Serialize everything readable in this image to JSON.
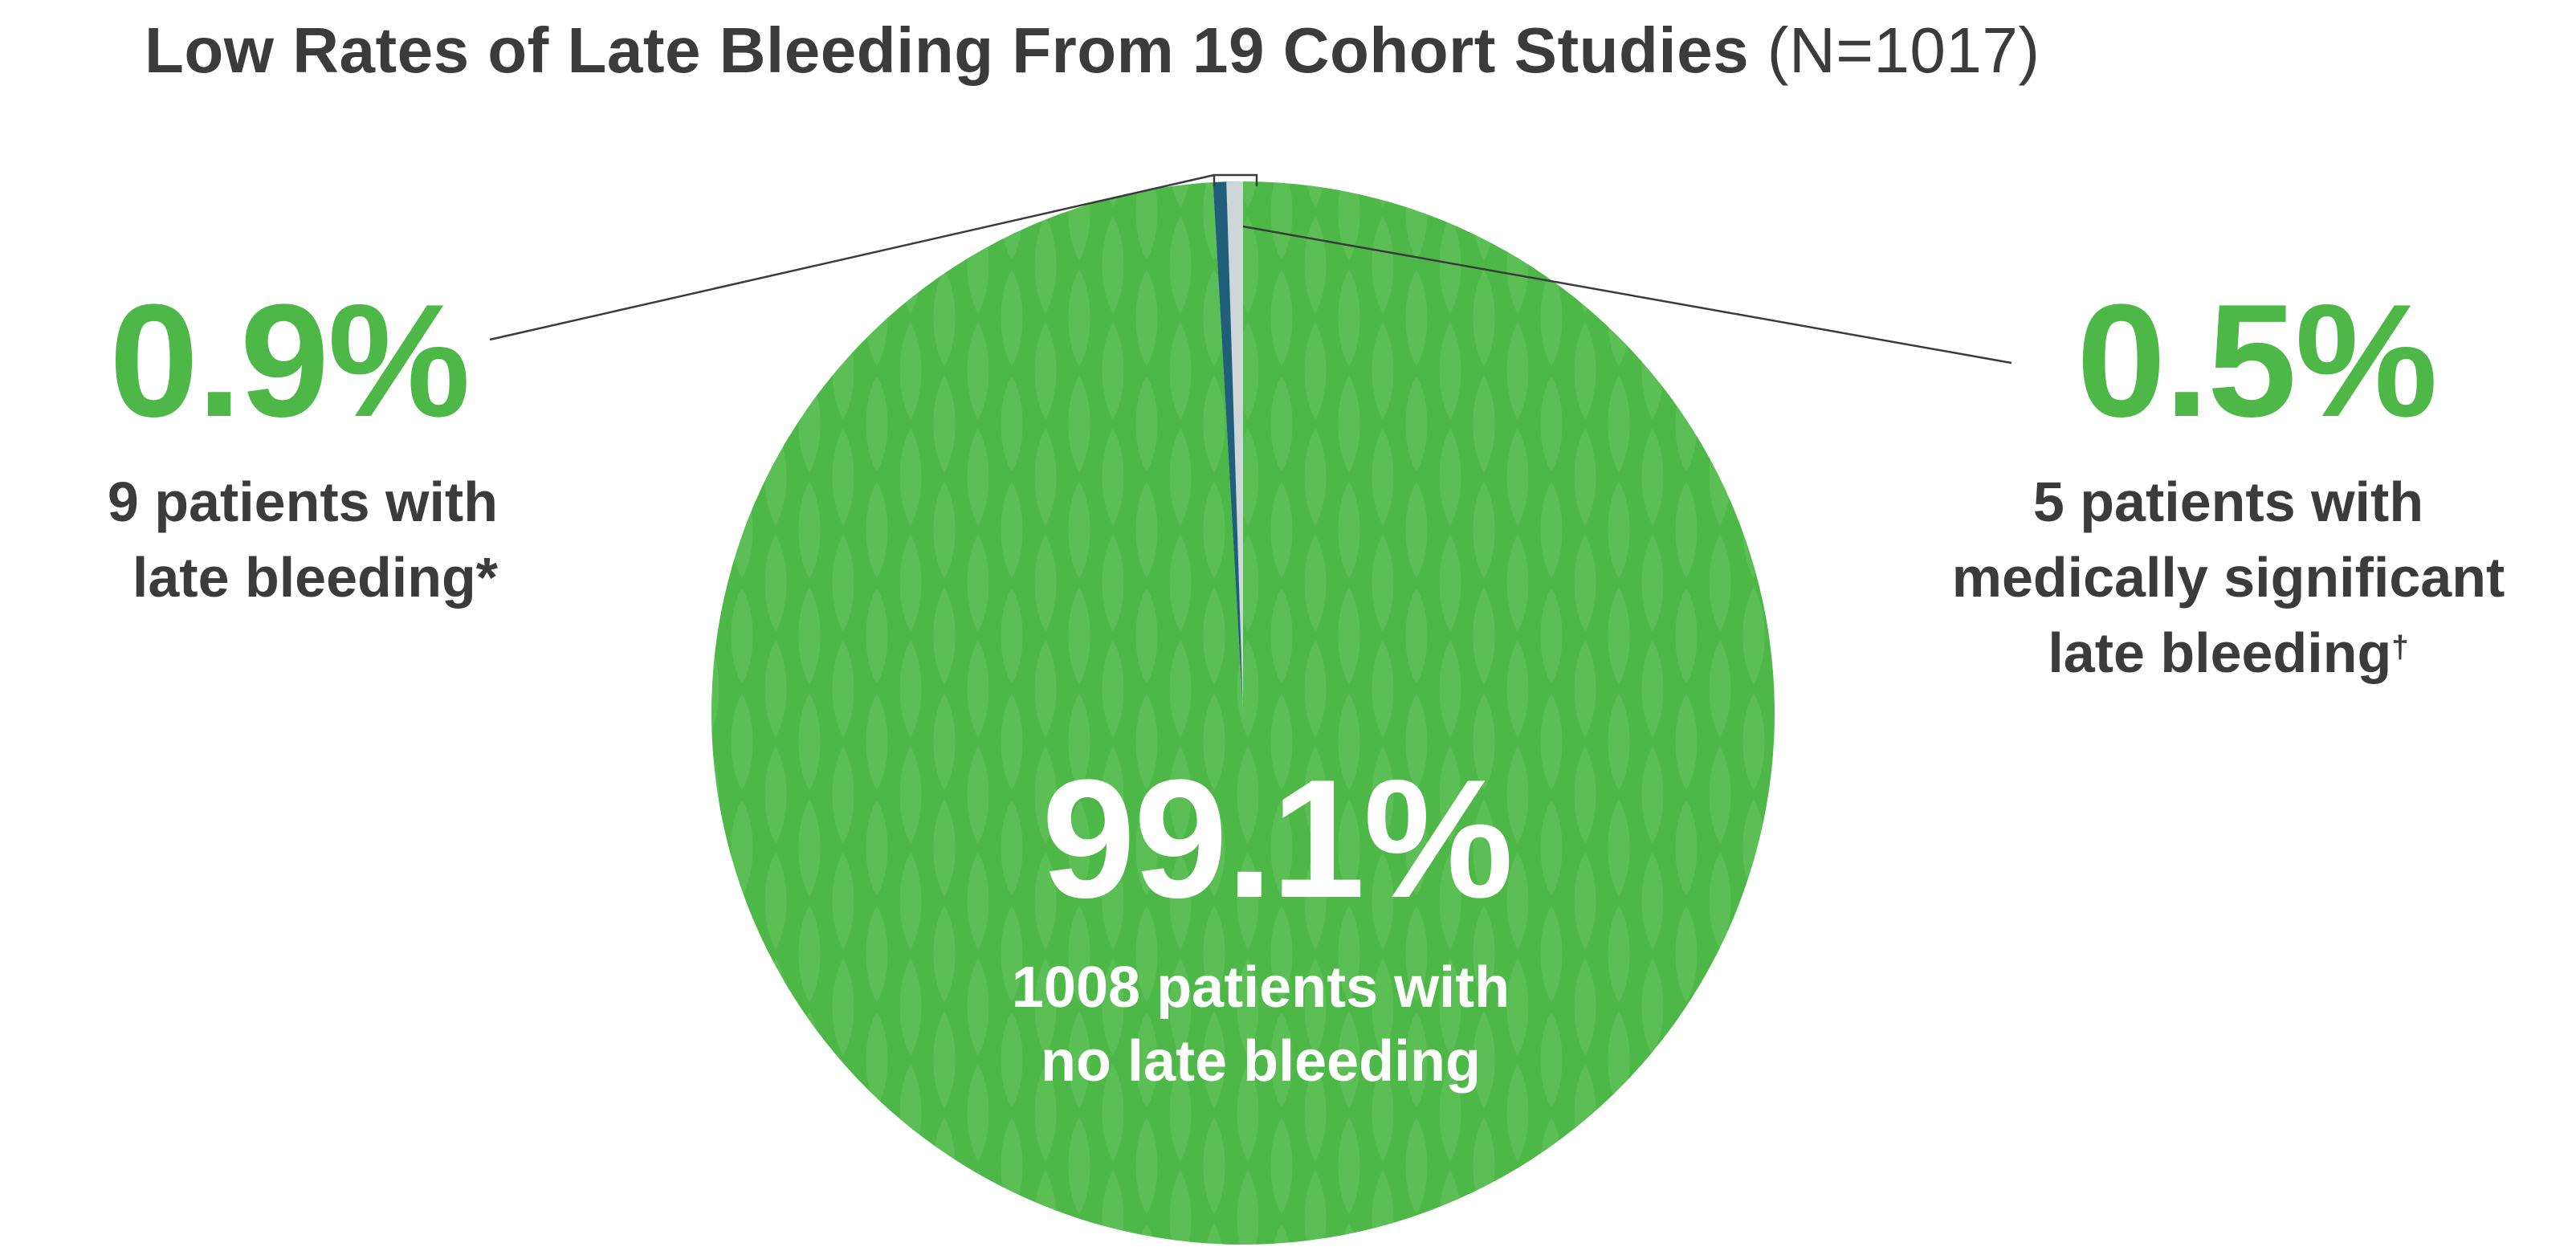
{
  "title": {
    "main": "Low Rates of Late Bleeding From 19 Cohort Studies",
    "n": "(N=1017)"
  },
  "colors": {
    "green": "#4db848",
    "green_pattern": "#62c25c",
    "dark_blue": "#1f5f7a",
    "light_gray": "#cfd6da",
    "text_dark": "#3b3b3b",
    "white": "#ffffff"
  },
  "labels": {
    "left": {
      "pct": "0.9%",
      "line1": "9 patients with",
      "line2": "late bleeding",
      "mark": "*"
    },
    "right": {
      "pct": "0.5%",
      "line1": "5 patients with",
      "line2": "medically significant",
      "line3": "late bleeding",
      "mark": "†"
    },
    "center": {
      "pct": "99.1%",
      "line1": "1008 patients with",
      "line2": "no late bleeding"
    }
  },
  "chart_data": {
    "type": "pie",
    "total": 1017,
    "slices": [
      {
        "label": "No late bleeding",
        "count": 1008,
        "percent": 99.1,
        "color": "#4db848"
      },
      {
        "label": "Late bleeding",
        "count": 9,
        "percent": 0.9,
        "color": "#1f5f7a"
      },
      {
        "label": "Medically significant late bleeding",
        "count": 5,
        "percent": 0.5,
        "color": "#cfd6da"
      }
    ]
  }
}
